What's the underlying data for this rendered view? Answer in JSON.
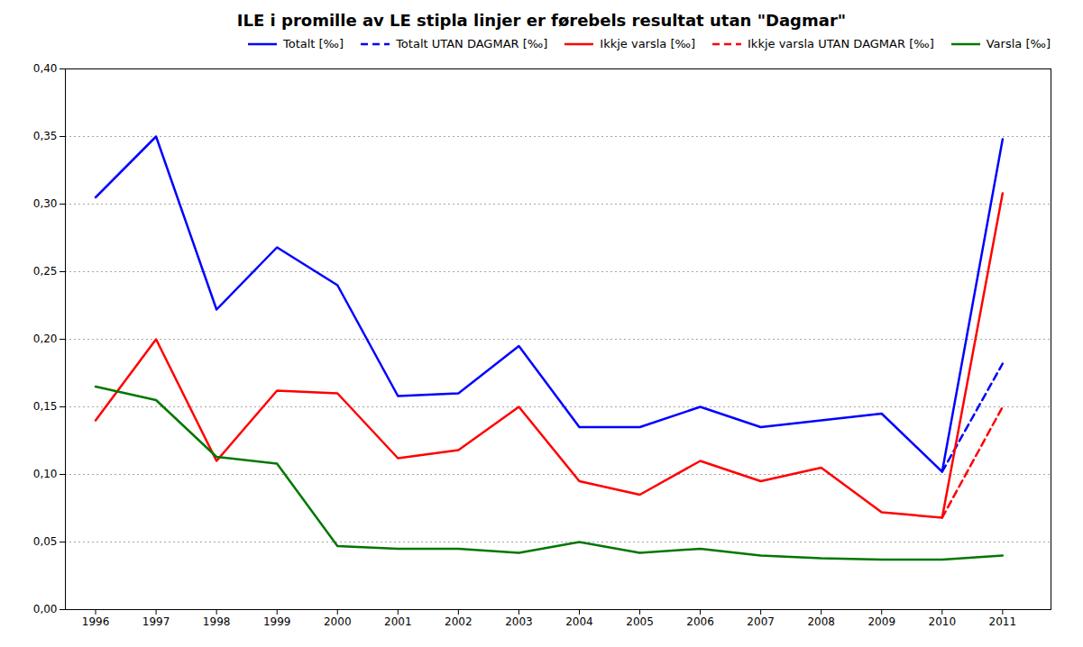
{
  "chart_data": {
    "type": "line",
    "title": "ILE i promille av LE stipla linjer er førebels resultat utan \"Dagmar\"",
    "x": [
      1996,
      1997,
      1998,
      1999,
      2000,
      2001,
      2002,
      2003,
      2004,
      2005,
      2006,
      2007,
      2008,
      2009,
      2010,
      2011
    ],
    "xlim": [
      1995.5,
      2011.8
    ],
    "xticks": [
      1996,
      1997,
      1998,
      1999,
      2000,
      2001,
      2002,
      2003,
      2004,
      2005,
      2006,
      2007,
      2008,
      2009,
      2010,
      2011
    ],
    "ylim": [
      0.0,
      0.4
    ],
    "yticks": [
      {
        "value": 0.0,
        "label": "0,00"
      },
      {
        "value": 0.05,
        "label": "0,05"
      },
      {
        "value": 0.1,
        "label": "0,10"
      },
      {
        "value": 0.15,
        "label": "0,15"
      },
      {
        "value": 0.2,
        "label": "0,20"
      },
      {
        "value": 0.25,
        "label": "0,25"
      },
      {
        "value": 0.3,
        "label": "0,30"
      },
      {
        "value": 0.35,
        "label": "0,35"
      },
      {
        "value": 0.4,
        "label": "0,40"
      }
    ],
    "grid": true,
    "legend": "upper right",
    "series": [
      {
        "name": "Totalt [‰]",
        "color": "#0000FF",
        "line_style": "solid",
        "values": [
          0.305,
          0.35,
          0.222,
          0.268,
          0.24,
          0.158,
          0.16,
          0.195,
          0.135,
          0.135,
          0.15,
          0.135,
          0.14,
          0.145,
          0.102,
          0.348
        ]
      },
      {
        "name": "Totalt UTAN DAGMAR [‰]",
        "color": "#0000FF",
        "line_style": "dashed",
        "values": [
          null,
          null,
          null,
          null,
          null,
          null,
          null,
          null,
          null,
          null,
          null,
          null,
          null,
          null,
          0.102,
          0.182
        ]
      },
      {
        "name": "Ikkje varsla [‰]",
        "color": "#FF0000",
        "line_style": "solid",
        "values": [
          0.14,
          0.2,
          0.11,
          0.162,
          0.16,
          0.112,
          0.118,
          0.15,
          0.095,
          0.085,
          0.11,
          0.095,
          0.105,
          0.072,
          0.068,
          0.308
        ]
      },
      {
        "name": "Ikkje varsla UTAN DAGMAR [‰]",
        "color": "#FF0000",
        "line_style": "dashed",
        "values": [
          null,
          null,
          null,
          null,
          null,
          null,
          null,
          null,
          null,
          null,
          null,
          null,
          null,
          null,
          0.068,
          0.15
        ]
      },
      {
        "name": "Varsla [‰]",
        "color": "#007700",
        "line_style": "solid",
        "values": [
          0.165,
          0.155,
          0.113,
          0.108,
          0.047,
          0.045,
          0.045,
          0.042,
          0.05,
          0.042,
          0.045,
          0.04,
          0.038,
          0.037,
          0.037,
          0.04
        ]
      }
    ]
  }
}
